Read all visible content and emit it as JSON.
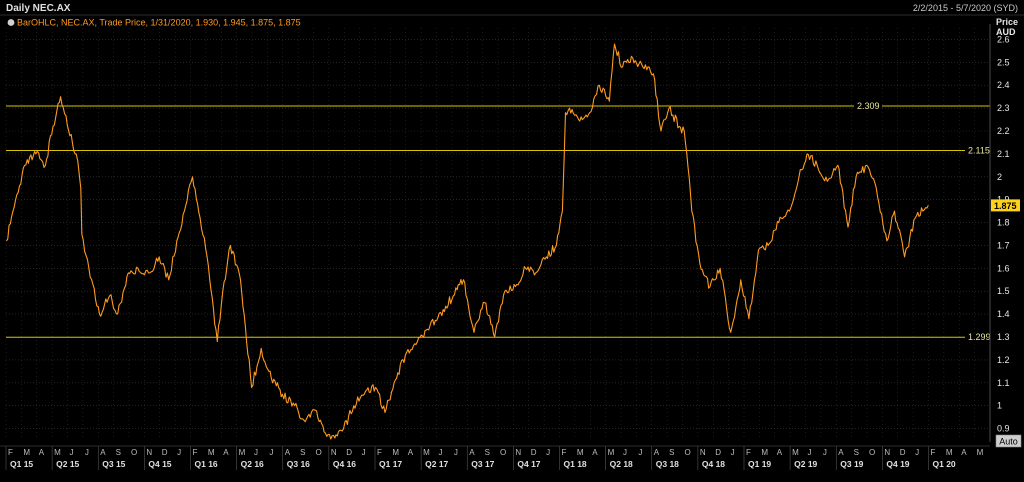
{
  "header": {
    "title": "Daily NEC.AX",
    "range": "2/2/2015 - 5/7/2020 (SYD)"
  },
  "legend": {
    "text": "BarOHLC, NEC.AX, Trade Price, 1/31/2020, 1.930, 1.945, 1.875, 1.875"
  },
  "axis": {
    "unit_line1": "Price",
    "unit_line2": "AUD",
    "auto_label": "Auto"
  },
  "colors": {
    "background": "#000000",
    "grid": "#3a3a3a",
    "series": "#ff9a1f",
    "hline": "#d9c400",
    "badge": "#ffd21a"
  },
  "chart_data": {
    "type": "line",
    "title": "Daily NEC.AX",
    "ylabel": "Price AUD",
    "ylim": [
      0.85,
      2.65
    ],
    "yticks": [
      0.9,
      1.0,
      1.1,
      1.2,
      1.3,
      1.4,
      1.5,
      1.6,
      1.7,
      1.8,
      1.9,
      2.0,
      2.1,
      2.2,
      2.3,
      2.4,
      2.5,
      2.6
    ],
    "grid": true,
    "last_value": "1.875",
    "hlines": [
      {
        "value": 2.309,
        "label": "2.309"
      },
      {
        "value": 2.115,
        "label": "2.115"
      },
      {
        "value": 1.299,
        "label": "1.299"
      }
    ],
    "x_months": [
      "F",
      "M",
      "A",
      "M",
      "J",
      "J",
      "A",
      "S",
      "O",
      "N",
      "D",
      "J",
      "F",
      "M",
      "A",
      "M",
      "J",
      "J",
      "A",
      "S",
      "O",
      "N",
      "D",
      "J",
      "F",
      "M",
      "A",
      "M",
      "J",
      "J",
      "A",
      "S",
      "O",
      "N",
      "D",
      "J",
      "F",
      "M",
      "A",
      "M",
      "J",
      "J",
      "A",
      "S",
      "O",
      "N",
      "D",
      "J",
      "F",
      "M",
      "A",
      "M",
      "J",
      "J",
      "A",
      "S",
      "O",
      "N",
      "D",
      "J",
      "F",
      "M",
      "A",
      "M"
    ],
    "x_quarters": [
      "Q1 15",
      "Q2 15",
      "Q3 15",
      "Q4 15",
      "Q1 16",
      "Q2 16",
      "Q3 16",
      "Q4 16",
      "Q1 17",
      "Q2 17",
      "Q3 17",
      "Q4 17",
      "Q1 18",
      "Q2 18",
      "Q3 18",
      "Q4 18",
      "Q1 19",
      "Q2 19",
      "Q3 19",
      "Q4 19",
      "Q1 20"
    ],
    "series": [
      {
        "name": "NEC.AX",
        "x": [
          "2015-02-02",
          "2015-02-20",
          "2015-03-10",
          "2015-04-01",
          "2015-04-20",
          "2015-05-05",
          "2015-05-20",
          "2015-06-05",
          "2015-06-20",
          "2015-06-29",
          "2015-07-01",
          "2015-07-15",
          "2015-08-05",
          "2015-08-25",
          "2015-09-10",
          "2015-10-01",
          "2015-10-20",
          "2015-11-10",
          "2015-12-01",
          "2015-12-20",
          "2016-01-05",
          "2016-01-20",
          "2016-02-05",
          "2016-02-20",
          "2016-03-05",
          "2016-03-25",
          "2016-04-05",
          "2016-04-20",
          "2016-05-10",
          "2016-06-01",
          "2016-06-20",
          "2016-07-10",
          "2016-08-01",
          "2016-08-25",
          "2016-09-15",
          "2016-10-05",
          "2016-10-25",
          "2016-11-10",
          "2016-11-30",
          "2016-12-20",
          "2017-01-10",
          "2017-02-01",
          "2017-02-20",
          "2017-03-10",
          "2017-04-01",
          "2017-04-25",
          "2017-05-20",
          "2017-06-15",
          "2017-07-05",
          "2017-07-25",
          "2017-08-15",
          "2017-09-05",
          "2017-09-25",
          "2017-10-15",
          "2017-11-05",
          "2017-11-25",
          "2017-12-15",
          "2018-01-05",
          "2018-01-25",
          "2018-02-06",
          "2018-02-12",
          "2018-02-20",
          "2018-03-10",
          "2018-04-01",
          "2018-04-20",
          "2018-05-10",
          "2018-05-20",
          "2018-06-05",
          "2018-06-25",
          "2018-07-15",
          "2018-08-05",
          "2018-08-20",
          "2018-09-05",
          "2018-09-25",
          "2018-10-05",
          "2018-10-10",
          "2018-10-20",
          "2018-11-05",
          "2018-11-25",
          "2018-12-15",
          "2019-01-05",
          "2019-01-25",
          "2019-02-10",
          "2019-03-01",
          "2019-03-20",
          "2019-04-10",
          "2019-05-01",
          "2019-05-20",
          "2019-06-05",
          "2019-06-25",
          "2019-07-15",
          "2019-08-05",
          "2019-08-25",
          "2019-09-10",
          "2019-10-01",
          "2019-10-20",
          "2019-11-10",
          "2019-11-25",
          "2019-12-15",
          "2020-01-05",
          "2020-01-20",
          "2020-01-31"
        ],
        "y": [
          1.72,
          1.9,
          2.05,
          2.1,
          2.05,
          2.22,
          2.35,
          2.2,
          2.1,
          1.95,
          1.75,
          1.6,
          1.4,
          1.48,
          1.4,
          1.58,
          1.6,
          1.58,
          1.65,
          1.55,
          1.72,
          1.85,
          2.0,
          1.82,
          1.65,
          1.28,
          1.5,
          1.7,
          1.55,
          1.08,
          1.25,
          1.12,
          1.05,
          1.0,
          0.93,
          0.98,
          0.88,
          0.87,
          0.9,
          1.0,
          1.05,
          1.08,
          0.97,
          1.1,
          1.22,
          1.28,
          1.35,
          1.42,
          1.48,
          1.55,
          1.32,
          1.45,
          1.3,
          1.5,
          1.52,
          1.6,
          1.58,
          1.65,
          1.7,
          1.85,
          2.28,
          2.3,
          2.25,
          2.28,
          2.4,
          2.33,
          2.58,
          2.48,
          2.52,
          2.48,
          2.45,
          2.2,
          2.3,
          2.22,
          2.2,
          2.1,
          1.85,
          1.62,
          1.52,
          1.6,
          1.32,
          1.55,
          1.38,
          1.68,
          1.7,
          1.8,
          1.85,
          2.0,
          2.1,
          2.05,
          1.98,
          2.05,
          1.78,
          2.0,
          2.05,
          1.95,
          1.72,
          1.85,
          1.65,
          1.82,
          1.85,
          1.875
        ]
      }
    ]
  }
}
